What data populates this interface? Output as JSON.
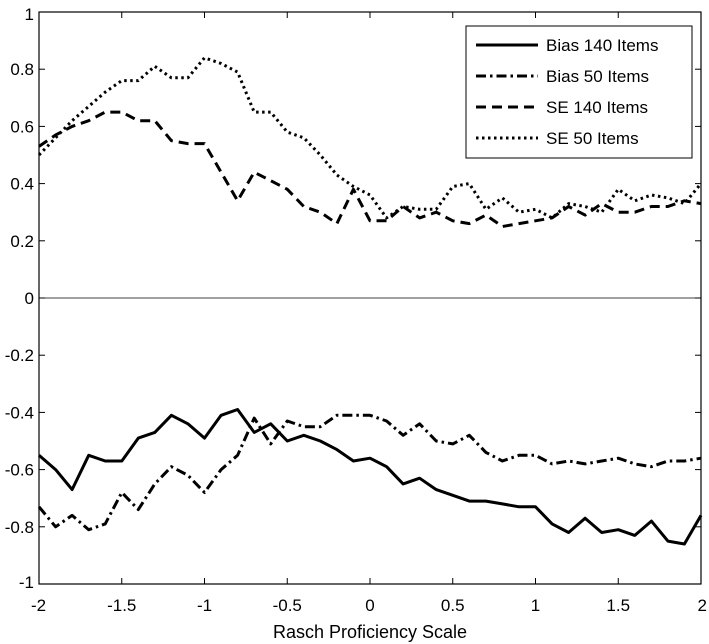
{
  "chart_data": {
    "type": "line",
    "title": "",
    "xlabel": "Rasch Proficiency Scale",
    "ylabel": "",
    "xlim": [
      -2,
      2
    ],
    "ylim": [
      -1,
      1
    ],
    "xticks": [
      -2,
      -1.5,
      -1,
      -0.5,
      0,
      0.5,
      1,
      1.5,
      2
    ],
    "xtick_labels": [
      "-2",
      "-1.5",
      "-1",
      "-0.5",
      "0",
      "0.5",
      "1",
      "1.5",
      "2"
    ],
    "yticks": [
      1,
      0.8,
      0.6,
      0.4,
      0.2,
      0,
      -0.2,
      -0.4,
      -0.6,
      -0.8,
      -1
    ],
    "ytick_labels": [
      "1",
      "0.8",
      "0.6",
      "0.4",
      "0.2",
      "0",
      "-0.2",
      "-0.4",
      "-0.6",
      "-0.8",
      "-1"
    ],
    "grid": false,
    "zero_line": true,
    "legend_position": "top-right",
    "series": [
      {
        "name": "Bias 140 Items",
        "style": "solid",
        "x": [
          -2,
          -1.9,
          -1.8,
          -1.7,
          -1.6,
          -1.5,
          -1.4,
          -1.3,
          -1.2,
          -1.1,
          -1,
          -0.9,
          -0.8,
          -0.7,
          -0.6,
          -0.5,
          -0.4,
          -0.3,
          -0.2,
          -0.1,
          0,
          0.1,
          0.2,
          0.3,
          0.4,
          0.5,
          0.6,
          0.7,
          0.8,
          0.9,
          1,
          1.1,
          1.2,
          1.3,
          1.4,
          1.5,
          1.6,
          1.7,
          1.8,
          1.9,
          2
        ],
        "values": [
          -0.55,
          -0.6,
          -0.67,
          -0.55,
          -0.57,
          -0.57,
          -0.49,
          -0.47,
          -0.41,
          -0.44,
          -0.49,
          -0.41,
          -0.39,
          -0.47,
          -0.44,
          -0.5,
          -0.48,
          -0.5,
          -0.53,
          -0.57,
          -0.56,
          -0.59,
          -0.65,
          -0.63,
          -0.67,
          -0.69,
          -0.71,
          -0.71,
          -0.72,
          -0.73,
          -0.73,
          -0.79,
          -0.82,
          -0.77,
          -0.82,
          -0.81,
          -0.83,
          -0.78,
          -0.85,
          -0.86,
          -0.76
        ]
      },
      {
        "name": "Bias 50 Items",
        "style": "dashdot",
        "x": [
          -2,
          -1.9,
          -1.8,
          -1.7,
          -1.6,
          -1.5,
          -1.4,
          -1.3,
          -1.2,
          -1.1,
          -1,
          -0.9,
          -0.8,
          -0.7,
          -0.6,
          -0.5,
          -0.4,
          -0.3,
          -0.2,
          -0.1,
          0,
          0.1,
          0.2,
          0.3,
          0.4,
          0.5,
          0.6,
          0.7,
          0.8,
          0.9,
          1,
          1.1,
          1.2,
          1.3,
          1.4,
          1.5,
          1.6,
          1.7,
          1.8,
          1.9,
          2
        ],
        "values": [
          -0.73,
          -0.8,
          -0.76,
          -0.81,
          -0.79,
          -0.68,
          -0.74,
          -0.65,
          -0.59,
          -0.62,
          -0.68,
          -0.6,
          -0.55,
          -0.42,
          -0.51,
          -0.43,
          -0.45,
          -0.45,
          -0.41,
          -0.41,
          -0.41,
          -0.43,
          -0.48,
          -0.44,
          -0.5,
          -0.51,
          -0.48,
          -0.54,
          -0.57,
          -0.55,
          -0.55,
          -0.58,
          -0.57,
          -0.58,
          -0.57,
          -0.56,
          -0.58,
          -0.59,
          -0.57,
          -0.57,
          -0.56
        ]
      },
      {
        "name": "SE 140 Items",
        "style": "dashed",
        "x": [
          -2,
          -1.9,
          -1.8,
          -1.7,
          -1.6,
          -1.5,
          -1.4,
          -1.3,
          -1.2,
          -1.1,
          -1,
          -0.9,
          -0.8,
          -0.7,
          -0.6,
          -0.5,
          -0.4,
          -0.3,
          -0.2,
          -0.1,
          0,
          0.1,
          0.2,
          0.3,
          0.4,
          0.5,
          0.6,
          0.7,
          0.8,
          0.9,
          1,
          1.1,
          1.2,
          1.3,
          1.4,
          1.5,
          1.6,
          1.7,
          1.8,
          1.9,
          2
        ],
        "values": [
          0.53,
          0.57,
          0.6,
          0.62,
          0.65,
          0.65,
          0.62,
          0.62,
          0.55,
          0.54,
          0.54,
          0.44,
          0.34,
          0.44,
          0.41,
          0.38,
          0.32,
          0.3,
          0.26,
          0.38,
          0.27,
          0.27,
          0.32,
          0.28,
          0.3,
          0.27,
          0.26,
          0.29,
          0.25,
          0.26,
          0.27,
          0.28,
          0.32,
          0.29,
          0.33,
          0.3,
          0.3,
          0.32,
          0.32,
          0.34,
          0.33
        ]
      },
      {
        "name": "SE 50 Items",
        "style": "dotted",
        "x": [
          -2,
          -1.9,
          -1.8,
          -1.7,
          -1.6,
          -1.5,
          -1.4,
          -1.3,
          -1.2,
          -1.1,
          -1,
          -0.9,
          -0.8,
          -0.7,
          -0.6,
          -0.5,
          -0.4,
          -0.3,
          -0.2,
          -0.1,
          0,
          0.1,
          0.2,
          0.3,
          0.4,
          0.5,
          0.6,
          0.7,
          0.8,
          0.9,
          1,
          1.1,
          1.2,
          1.3,
          1.4,
          1.5,
          1.6,
          1.7,
          1.8,
          1.9,
          2
        ],
        "values": [
          0.5,
          0.56,
          0.62,
          0.67,
          0.72,
          0.76,
          0.76,
          0.81,
          0.77,
          0.77,
          0.84,
          0.82,
          0.79,
          0.65,
          0.65,
          0.58,
          0.56,
          0.5,
          0.43,
          0.39,
          0.36,
          0.28,
          0.32,
          0.31,
          0.31,
          0.39,
          0.4,
          0.31,
          0.35,
          0.3,
          0.31,
          0.28,
          0.33,
          0.32,
          0.3,
          0.38,
          0.34,
          0.36,
          0.35,
          0.33,
          0.4
        ]
      }
    ]
  }
}
